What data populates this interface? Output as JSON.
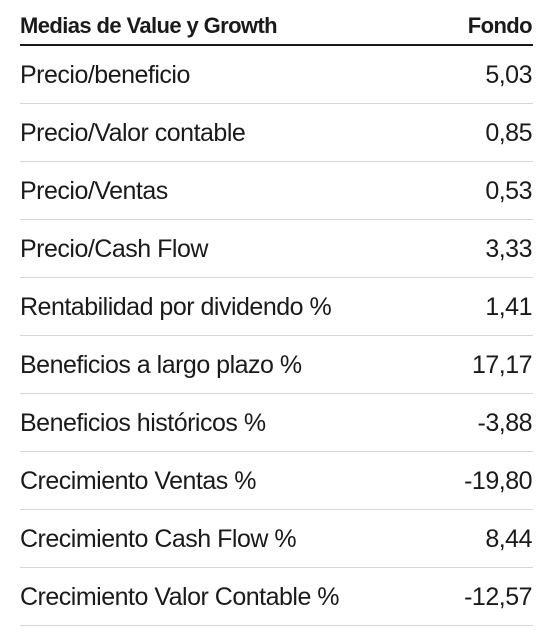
{
  "table": {
    "header": {
      "metric_label": "Medias de Value y Growth",
      "value_label": "Fondo"
    },
    "rows": [
      {
        "metric": "Precio/beneficio",
        "value": "5,03"
      },
      {
        "metric": "Precio/Valor contable",
        "value": "0,85"
      },
      {
        "metric": "Precio/Ventas",
        "value": "0,53"
      },
      {
        "metric": "Precio/Cash Flow",
        "value": "3,33"
      },
      {
        "metric": "Rentabilidad por dividendo %",
        "value": "1,41"
      },
      {
        "metric": "Beneficios a largo plazo %",
        "value": "17,17"
      },
      {
        "metric": "Beneficios históricos %",
        "value": "-3,88"
      },
      {
        "metric": "Crecimiento Ventas %",
        "value": "-19,80"
      },
      {
        "metric": "Crecimiento Cash Flow %",
        "value": "8,44"
      },
      {
        "metric": "Crecimiento Valor Contable %",
        "value": "-12,57"
      }
    ]
  }
}
